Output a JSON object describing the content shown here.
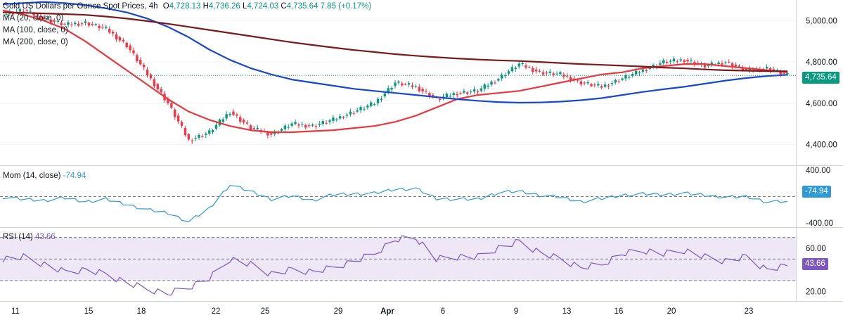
{
  "header": {
    "title": "Gold US Dollars per Ounce Spot Prices, 4h",
    "open_label": "O",
    "open": "4,728.13",
    "high_label": "H",
    "high": "4,736.26",
    "low_label": "L",
    "low": "4,724.03",
    "close_label": "C",
    "close": "4,735.64",
    "change": "7.85 (+0.17%)",
    "ma_labels": [
      "MA (20, close, 0)",
      "MA (100, close, 0)",
      "MA (200, close, 0)"
    ]
  },
  "mom": {
    "label": "Mom (14, close)",
    "value": "-74.94"
  },
  "rsi": {
    "label": "RSI (14)",
    "value": "43.66"
  },
  "price_badge": "4,735.64",
  "colors": {
    "up": "#089981",
    "down": "#f23645",
    "ma20": "#e8373f",
    "ma100": "#1848cc",
    "ma200": "#7b1a1a",
    "mom": "#2f9ad6",
    "rsi": "#7e57c2",
    "rsi_band": "#ede7f6"
  },
  "chart_data": [
    {
      "type": "line",
      "title": "Gold US Dollars per Ounce Spot Prices, 4h",
      "x_ticks": [
        "11",
        "15",
        "18",
        "22",
        "25",
        "29",
        "Apr",
        "6",
        "9",
        "13",
        "16",
        "20",
        "23"
      ],
      "y_ticks": [
        "4,400.00",
        "4,600.00",
        "4,800.00",
        "5,000.00"
      ],
      "ylim": [
        4300,
        5100
      ],
      "series": [
        {
          "name": "MA (20, close, 0)",
          "values": [
            5050,
            5030,
            5000,
            4960,
            4900,
            4830,
            4760,
            4690,
            4620,
            4560,
            4520,
            4490,
            4470,
            4460,
            4460,
            4465,
            4470,
            4480,
            4490,
            4510,
            4540,
            4580,
            4620,
            4640,
            4650,
            4660,
            4680,
            4700,
            4720,
            4740,
            4750,
            4770,
            4780,
            4790,
            4790,
            4780,
            4770,
            4760,
            4750
          ]
        },
        {
          "name": "MA (100, close, 0)",
          "values": [
            5080,
            5085,
            5090,
            5085,
            5075,
            5060,
            5040,
            5010,
            4970,
            4920,
            4860,
            4810,
            4770,
            4740,
            4715,
            4700,
            4685,
            4670,
            4660,
            4650,
            4640,
            4630,
            4620,
            4612,
            4606,
            4603,
            4604,
            4608,
            4615,
            4625,
            4640,
            4655,
            4668,
            4680,
            4695,
            4710,
            4722,
            4732,
            4738
          ]
        },
        {
          "name": "MA (200, close, 0)",
          "values": [
            5040,
            5038,
            5035,
            5032,
            5028,
            5020,
            5010,
            4998,
            4985,
            4970,
            4955,
            4940,
            4925,
            4910,
            4895,
            4882,
            4870,
            4858,
            4848,
            4838,
            4830,
            4823,
            4817,
            4812,
            4808,
            4805,
            4800,
            4795,
            4790,
            4786,
            4782,
            4778,
            4773,
            4769,
            4764,
            4760,
            4758,
            4756,
            4755
          ]
        },
        {
          "name": "Close",
          "values": [
            5030,
            5050,
            5010,
            4980,
            4990,
            4960,
            4880,
            4740,
            4600,
            4420,
            4460,
            4560,
            4480,
            4450,
            4500,
            4490,
            4520,
            4560,
            4600,
            4700,
            4680,
            4620,
            4650,
            4660,
            4720,
            4790,
            4750,
            4740,
            4700,
            4680,
            4720,
            4760,
            4800,
            4810,
            4780,
            4800,
            4760,
            4770,
            4735
          ]
        }
      ]
    },
    {
      "type": "line",
      "title": "Mom (14, close)",
      "ylim": [
        -400,
        400
      ],
      "y_ticks": [
        "400.00",
        "-400.00"
      ],
      "series": [
        {
          "name": "Mom (14, close)",
          "values": [
            -10,
            -40,
            -60,
            -20,
            -80,
            -40,
            -120,
            -200,
            -250,
            -380,
            -180,
            180,
            80,
            -40,
            10,
            -60,
            30,
            40,
            50,
            110,
            120,
            -30,
            -40,
            -40,
            60,
            80,
            20,
            -10,
            -80,
            -30,
            20,
            40,
            30,
            50,
            20,
            -10,
            0,
            -80,
            -74.94
          ]
        }
      ]
    },
    {
      "type": "line",
      "title": "RSI (14)",
      "ylim": [
        15,
        75
      ],
      "y_ticks": [
        "20.00",
        "60.00"
      ],
      "bands": [
        30,
        50,
        70
      ],
      "series": [
        {
          "name": "RSI (14)",
          "values": [
            50,
            52,
            45,
            38,
            40,
            36,
            28,
            22,
            18,
            24,
            32,
            50,
            45,
            36,
            40,
            38,
            42,
            48,
            55,
            68,
            70,
            50,
            52,
            52,
            60,
            66,
            56,
            50,
            42,
            45,
            55,
            58,
            55,
            58,
            52,
            48,
            52,
            40,
            43.66
          ]
        }
      ]
    }
  ]
}
